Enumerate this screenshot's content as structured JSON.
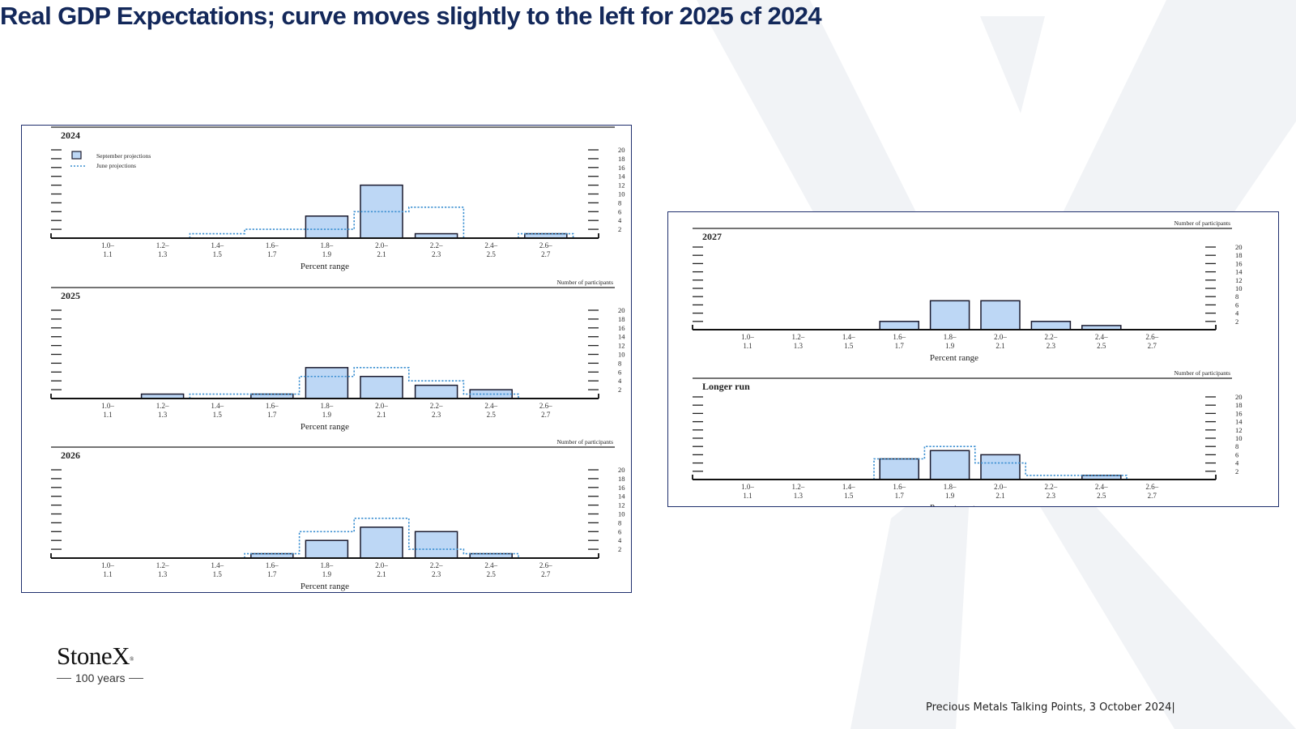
{
  "slide": {
    "title": "Real GDP Expectations; curve moves slightly to the left for 2025 cf 2024",
    "footer": "Precious Metals Talking Points, 3 October 2024|"
  },
  "logo": {
    "name": "StoneX",
    "mark": "®",
    "tagline": "100 years"
  },
  "colors": {
    "title": "#13285a",
    "bar_fill": "#bdd7f5",
    "bar_stroke": "#1a1a2e",
    "june_line": "#3b8fd1",
    "panel_border": "#1f2f6d",
    "bg_x": "#f1f3f6"
  },
  "chart_data": [
    {
      "type": "bar",
      "title": "2024",
      "categories": [
        "1.0–1.1",
        "1.2–1.3",
        "1.4–1.5",
        "1.6–1.7",
        "1.8–1.9",
        "2.0–2.1",
        "2.2–2.3",
        "2.4–2.5",
        "2.6–2.7"
      ],
      "series": [
        {
          "name": "September projections",
          "values": [
            0,
            0,
            0,
            0,
            5,
            12,
            1,
            0,
            1
          ]
        },
        {
          "name": "June projections",
          "values": [
            0,
            0,
            1,
            2,
            2,
            6,
            7,
            0,
            1
          ]
        }
      ],
      "xlabel": "Percent range",
      "ylabel": "Number of participants",
      "ylim": [
        0,
        20
      ],
      "yticks": [
        2,
        4,
        6,
        8,
        10,
        12,
        14,
        16,
        18,
        20
      ],
      "legend": "top-left"
    },
    {
      "type": "bar",
      "title": "2025",
      "categories": [
        "1.0–1.1",
        "1.2–1.3",
        "1.4–1.5",
        "1.6–1.7",
        "1.8–1.9",
        "2.0–2.1",
        "2.2–2.3",
        "2.4–2.5",
        "2.6–2.7"
      ],
      "series": [
        {
          "values": [
            0,
            1,
            0,
            1,
            7,
            5,
            3,
            2,
            0
          ]
        },
        {
          "values": [
            0,
            0,
            1,
            1,
            5,
            7,
            4,
            1,
            0
          ]
        }
      ],
      "xlabel": "Percent range",
      "ylabel": "Number of participants",
      "ylim": [
        0,
        20
      ],
      "yticks": [
        2,
        4,
        6,
        8,
        10,
        12,
        14,
        16,
        18,
        20
      ]
    },
    {
      "type": "bar",
      "title": "2026",
      "categories": [
        "1.0–1.1",
        "1.2–1.3",
        "1.4–1.5",
        "1.6–1.7",
        "1.8–1.9",
        "2.0–2.1",
        "2.2–2.3",
        "2.4–2.5",
        "2.6–2.7"
      ],
      "series": [
        {
          "values": [
            0,
            0,
            0,
            1,
            4,
            7,
            6,
            1,
            0
          ]
        },
        {
          "values": [
            0,
            0,
            0,
            1,
            6,
            9,
            2,
            1,
            0
          ]
        }
      ],
      "xlabel": "Percent range",
      "ylabel": "Number of participants",
      "ylim": [
        0,
        20
      ],
      "yticks": [
        2,
        4,
        6,
        8,
        10,
        12,
        14,
        16,
        18,
        20
      ]
    },
    {
      "type": "bar",
      "title": "2027",
      "categories": [
        "1.0–1.1",
        "1.2–1.3",
        "1.4–1.5",
        "1.6–1.7",
        "1.8–1.9",
        "2.0–2.1",
        "2.2–2.3",
        "2.4–2.5",
        "2.6–2.7"
      ],
      "series": [
        {
          "values": [
            0,
            0,
            0,
            2,
            7,
            7,
            2,
            1,
            0
          ]
        }
      ],
      "xlabel": "Percent range",
      "ylabel": "Number of participants",
      "ylim": [
        0,
        20
      ],
      "yticks": [
        2,
        4,
        6,
        8,
        10,
        12,
        14,
        16,
        18,
        20
      ]
    },
    {
      "type": "bar",
      "title": "Longer run",
      "categories": [
        "1.0–1.1",
        "1.2–1.3",
        "1.4–1.5",
        "1.6–1.7",
        "1.8–1.9",
        "2.0–2.1",
        "2.2–2.3",
        "2.4–2.5",
        "2.6–2.7"
      ],
      "series": [
        {
          "values": [
            0,
            0,
            0,
            5,
            7,
            6,
            0,
            1,
            0
          ]
        },
        {
          "values": [
            0,
            0,
            0,
            5,
            8,
            4,
            1,
            1,
            0
          ]
        }
      ],
      "xlabel": "Percent range",
      "ylabel": "Number of participants",
      "ylim": [
        0,
        20
      ],
      "yticks": [
        2,
        4,
        6,
        8,
        10,
        12,
        14,
        16,
        18,
        20
      ]
    }
  ]
}
